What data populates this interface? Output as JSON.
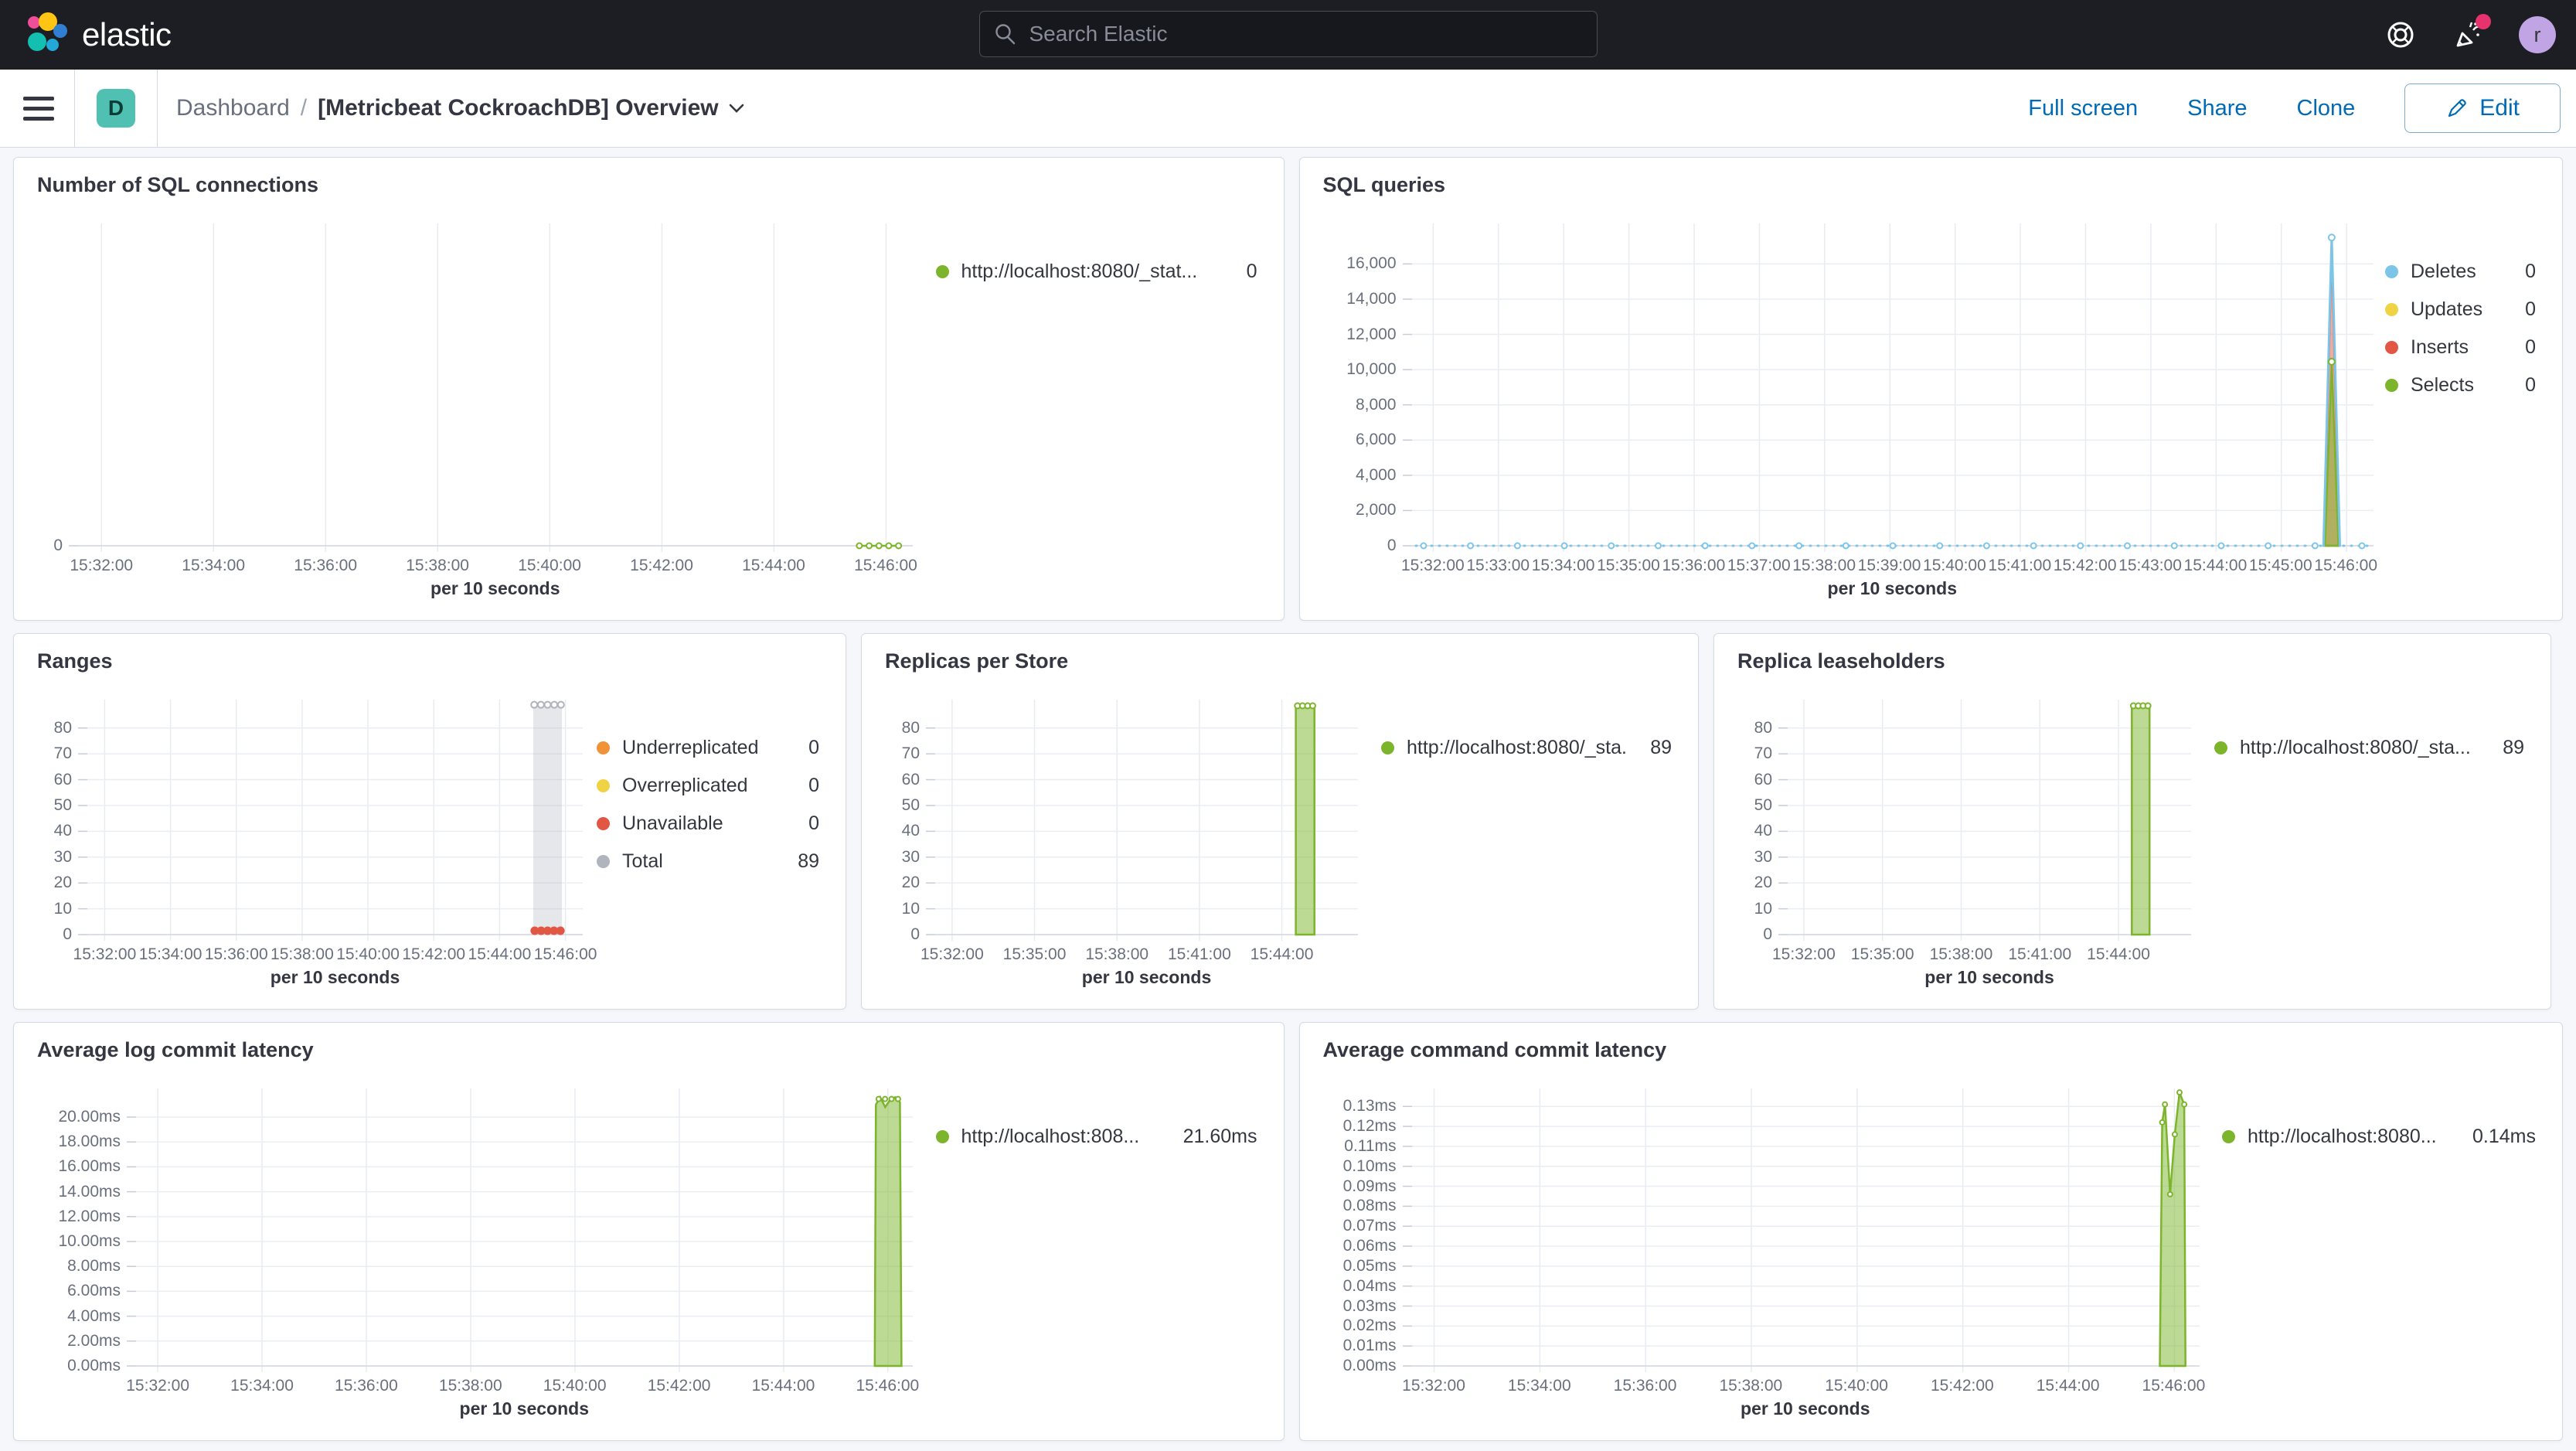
{
  "header": {
    "logo_text": "elastic",
    "search_placeholder": "Search Elastic",
    "avatar_initial": "r"
  },
  "toolbar": {
    "badge": "D",
    "breadcrumb_root": "Dashboard",
    "breadcrumb_sep": "/",
    "title": "[Metricbeat CockroachDB] Overview",
    "action_fullscreen": "Full screen",
    "action_share": "Share",
    "action_clone": "Clone",
    "edit_label": "Edit"
  },
  "colors": {
    "green": "#7CB52B",
    "blue": "#7DC5E8",
    "yellow": "#EFD344",
    "red": "#E25744",
    "orange": "#F09237",
    "gray": "#AFB4BD",
    "link": "#006BB4",
    "accent": "#E6336E"
  },
  "panels": [
    {
      "id": "p1",
      "title": "Number of SQL connections",
      "legend": [
        {
          "color": "green",
          "label": "http://localhost:8080/_stat...",
          "value": "0"
        }
      ],
      "chart": {
        "ylim": [
          0,
          10
        ],
        "yticks": [
          {
            "v": 0,
            "label": "0"
          }
        ],
        "xticks": {
          "first": 0.028,
          "last": 0.968,
          "labels": [
            "15:32:00",
            "15:34:00",
            "15:36:00",
            "15:38:00",
            "15:40:00",
            "15:42:00",
            "15:44:00",
            "15:46:00"
          ]
        },
        "xtitle": "per 10 seconds",
        "series": [
          {
            "type": "line",
            "color": "green",
            "w": 2.5,
            "points": [
              [
                0.936,
                0
              ],
              [
                0.983,
                0
              ]
            ]
          },
          {
            "type": "dotrow",
            "color": "green",
            "fill": "#ffffff",
            "r": 3.5,
            "y": 0,
            "x0": 0.936,
            "x1": 0.983,
            "n": 5
          }
        ]
      }
    },
    {
      "id": "p2",
      "title": "SQL queries",
      "legend": [
        {
          "color": "blue",
          "label": "Deletes",
          "value": "0"
        },
        {
          "color": "yellow",
          "label": "Updates",
          "value": "0"
        },
        {
          "color": "red",
          "label": "Inserts",
          "value": "0"
        },
        {
          "color": "green",
          "label": "Selects",
          "value": "0"
        }
      ],
      "chart": {
        "ylim": [
          0,
          18300
        ],
        "yticks": [
          {
            "v": 0,
            "label": "0"
          },
          {
            "v": 2000,
            "label": "2,000"
          },
          {
            "v": 4000,
            "label": "4,000"
          },
          {
            "v": 6000,
            "label": "6,000"
          },
          {
            "v": 8000,
            "label": "8,000"
          },
          {
            "v": 10000,
            "label": "10,000"
          },
          {
            "v": 12000,
            "label": "12,000"
          },
          {
            "v": 14000,
            "label": "14,000"
          },
          {
            "v": 16000,
            "label": "16,000"
          }
        ],
        "xticks": {
          "first": 0.022,
          "last": 0.972,
          "labels": [
            "15:32:00",
            "15:33:00",
            "15:34:00",
            "15:35:00",
            "15:36:00",
            "15:37:00",
            "15:38:00",
            "15:39:00",
            "15:40:00",
            "15:41:00",
            "15:42:00",
            "15:43:00",
            "15:44:00",
            "15:45:00",
            "15:46:00"
          ]
        },
        "xtitle": "per 10 seconds",
        "series": [
          {
            "type": "line",
            "color": "blue",
            "w": 3,
            "dash": "1 9",
            "points": [
              [
                0.004,
                0
              ],
              [
                0.996,
                0
              ]
            ]
          },
          {
            "type": "dotrow",
            "color": "blue",
            "fill": "#ffffff",
            "r": 3.5,
            "y": 0,
            "x0": 0.012,
            "x1": 0.988,
            "n": 21
          },
          {
            "type": "area",
            "color": "red",
            "fillo": 0.5,
            "points": [
              [
                0.9485,
                0
              ],
              [
                0.9565,
                16800
              ],
              [
                0.9645,
                0
              ]
            ]
          },
          {
            "type": "area",
            "color": "green",
            "fillo": 0.55,
            "points": [
              [
                0.9495,
                0
              ],
              [
                0.9565,
                10450
              ],
              [
                0.9635,
                0
              ]
            ]
          },
          {
            "type": "line",
            "color": "blue",
            "w": 3,
            "points": [
              [
                0.948,
                0
              ],
              [
                0.9565,
                17500
              ],
              [
                0.965,
                0
              ]
            ]
          },
          {
            "type": "markers",
            "color": "blue",
            "fill": "#ffffff",
            "r": 4,
            "points": [
              [
                0.9565,
                17500
              ]
            ]
          },
          {
            "type": "markers",
            "color": "green",
            "fill": "#ffffff",
            "r": 4,
            "points": [
              [
                0.9565,
                10450
              ]
            ]
          }
        ]
      }
    },
    {
      "id": "p3",
      "title": "Ranges",
      "legend": [
        {
          "color": "orange",
          "label": "Underreplicated",
          "value": "0"
        },
        {
          "color": "yellow",
          "label": "Overreplicated",
          "value": "0"
        },
        {
          "color": "red",
          "label": "Unavailable",
          "value": "0"
        },
        {
          "color": "gray",
          "label": "Total",
          "value": "89"
        }
      ],
      "chart": {
        "ylim": [
          0,
          91
        ],
        "yticks": [
          {
            "v": 0,
            "label": "0"
          },
          {
            "v": 10,
            "label": "10"
          },
          {
            "v": 20,
            "label": "20"
          },
          {
            "v": 30,
            "label": "30"
          },
          {
            "v": 40,
            "label": "40"
          },
          {
            "v": 50,
            "label": "50"
          },
          {
            "v": 60,
            "label": "60"
          },
          {
            "v": 70,
            "label": "70"
          },
          {
            "v": 80,
            "label": "80"
          }
        ],
        "xticks": {
          "first": 0.035,
          "last": 0.965,
          "labels": [
            "15:32:00",
            "15:34:00",
            "15:36:00",
            "15:38:00",
            "15:40:00",
            "15:42:00",
            "15:44:00",
            "15:46:00"
          ]
        },
        "xtitle": "per 10 seconds",
        "series": [
          {
            "type": "area",
            "color": "gray",
            "nostroke": true,
            "fillo": 0.32,
            "points": [
              [
                0.9,
                0
              ],
              [
                0.9,
                89
              ],
              [
                0.958,
                89
              ],
              [
                0.958,
                0
              ]
            ]
          },
          {
            "type": "dotrow",
            "color": "gray",
            "fill": "#ffffff",
            "r": 4,
            "y": 89,
            "x0": 0.902,
            "x1": 0.956,
            "n": 5
          },
          {
            "type": "dotrow",
            "color": "red",
            "fill": "red",
            "r": 4.5,
            "y": 1.5,
            "x0": 0.903,
            "x1": 0.955,
            "n": 5
          }
        ]
      }
    },
    {
      "id": "p4",
      "title": "Replicas per Store",
      "legend": [
        {
          "color": "green",
          "label": "http://localhost:8080/_sta...",
          "value": "89"
        }
      ],
      "chart": {
        "ylim": [
          0,
          91
        ],
        "yticks": [
          {
            "v": 0,
            "label": "0"
          },
          {
            "v": 10,
            "label": "10"
          },
          {
            "v": 20,
            "label": "20"
          },
          {
            "v": 30,
            "label": "30"
          },
          {
            "v": 40,
            "label": "40"
          },
          {
            "v": 50,
            "label": "50"
          },
          {
            "v": 60,
            "label": "60"
          },
          {
            "v": 70,
            "label": "70"
          },
          {
            "v": 80,
            "label": "80"
          }
        ],
        "xticks": {
          "first": 0.04,
          "last": 0.82,
          "labels": [
            "15:32:00",
            "15:35:00",
            "15:38:00",
            "15:41:00",
            "15:44:00"
          ]
        },
        "xtitle": "per 10 seconds",
        "series": [
          {
            "type": "area",
            "color": "green",
            "fillo": 0.5,
            "points": [
              [
                0.853,
                0
              ],
              [
                0.853,
                88
              ],
              [
                0.897,
                89
              ],
              [
                0.897,
                0
              ]
            ]
          },
          {
            "type": "dotrow",
            "color": "green",
            "fill": "#ffffff",
            "r": 3.5,
            "y": 88.6,
            "x0": 0.857,
            "x1": 0.893,
            "n": 4
          }
        ]
      }
    },
    {
      "id": "p5",
      "title": "Replica leaseholders",
      "legend": [
        {
          "color": "green",
          "label": "http://localhost:8080/_sta...",
          "value": "89"
        }
      ],
      "chart": {
        "ylim": [
          0,
          91
        ],
        "yticks": [
          {
            "v": 0,
            "label": "0"
          },
          {
            "v": 10,
            "label": "10"
          },
          {
            "v": 20,
            "label": "20"
          },
          {
            "v": 30,
            "label": "30"
          },
          {
            "v": 40,
            "label": "40"
          },
          {
            "v": 50,
            "label": "50"
          },
          {
            "v": 60,
            "label": "60"
          },
          {
            "v": 70,
            "label": "70"
          },
          {
            "v": 80,
            "label": "80"
          }
        ],
        "xticks": {
          "first": 0.04,
          "last": 0.82,
          "labels": [
            "15:32:00",
            "15:35:00",
            "15:38:00",
            "15:41:00",
            "15:44:00"
          ]
        },
        "xtitle": "per 10 seconds",
        "series": [
          {
            "type": "area",
            "color": "green",
            "fillo": 0.5,
            "points": [
              [
                0.853,
                0
              ],
              [
                0.853,
                88
              ],
              [
                0.897,
                89
              ],
              [
                0.897,
                0
              ]
            ]
          },
          {
            "type": "dotrow",
            "color": "green",
            "fill": "#ffffff",
            "r": 3.5,
            "y": 88.6,
            "x0": 0.857,
            "x1": 0.893,
            "n": 4
          }
        ]
      }
    },
    {
      "id": "p6",
      "title": "Average log commit latency",
      "legend": [
        {
          "color": "green",
          "label": "http://localhost:808...",
          "value": "21.60ms"
        }
      ],
      "chart": {
        "ylim": [
          0,
          22.3
        ],
        "yticks": [
          {
            "v": 0,
            "label": "0.00ms"
          },
          {
            "v": 2,
            "label": "2.00ms"
          },
          {
            "v": 4,
            "label": "4.00ms"
          },
          {
            "v": 6,
            "label": "6.00ms"
          },
          {
            "v": 8,
            "label": "8.00ms"
          },
          {
            "v": 10,
            "label": "10.00ms"
          },
          {
            "v": 12,
            "label": "12.00ms"
          },
          {
            "v": 14,
            "label": "14.00ms"
          },
          {
            "v": 16,
            "label": "16.00ms"
          },
          {
            "v": 18,
            "label": "18.00ms"
          },
          {
            "v": 20,
            "label": "20.00ms"
          }
        ],
        "xticks": {
          "first": 0.028,
          "last": 0.968,
          "labels": [
            "15:32:00",
            "15:34:00",
            "15:36:00",
            "15:38:00",
            "15:40:00",
            "15:42:00",
            "15:44:00",
            "15:46:00"
          ]
        },
        "xtitle": "per 10 seconds",
        "series": [
          {
            "type": "area",
            "color": "green",
            "fillo": 0.5,
            "points": [
              [
                0.951,
                0
              ],
              [
                0.9525,
                21.0
              ],
              [
                0.958,
                21.6
              ],
              [
                0.9645,
                20.8
              ],
              [
                0.971,
                21.4
              ],
              [
                0.9775,
                21.6
              ],
              [
                0.9835,
                21.2
              ],
              [
                0.9855,
                0
              ]
            ]
          },
          {
            "type": "dotrow",
            "color": "green",
            "fill": "#ffffff",
            "r": 3,
            "y": 21.45,
            "x0": 0.956,
            "x1": 0.981,
            "n": 4
          }
        ]
      }
    },
    {
      "id": "p7",
      "title": "Average command commit latency",
      "legend": [
        {
          "color": "green",
          "label": "http://localhost:8080...",
          "value": "0.14ms"
        }
      ],
      "chart": {
        "ylim": [
          0,
          0.139
        ],
        "yticks": [
          {
            "v": 0,
            "label": "0.00ms"
          },
          {
            "v": 0.01,
            "label": "0.01ms"
          },
          {
            "v": 0.02,
            "label": "0.02ms"
          },
          {
            "v": 0.03,
            "label": "0.03ms"
          },
          {
            "v": 0.04,
            "label": "0.04ms"
          },
          {
            "v": 0.05,
            "label": "0.05ms"
          },
          {
            "v": 0.06,
            "label": "0.06ms"
          },
          {
            "v": 0.07,
            "label": "0.07ms"
          },
          {
            "v": 0.08,
            "label": "0.08ms"
          },
          {
            "v": 0.09,
            "label": "0.09ms"
          },
          {
            "v": 0.1,
            "label": "0.10ms"
          },
          {
            "v": 0.11,
            "label": "0.11ms"
          },
          {
            "v": 0.12,
            "label": "0.12ms"
          },
          {
            "v": 0.13,
            "label": "0.13ms"
          }
        ],
        "xticks": {
          "first": 0.028,
          "last": 0.968,
          "labels": [
            "15:32:00",
            "15:34:00",
            "15:36:00",
            "15:38:00",
            "15:40:00",
            "15:42:00",
            "15:44:00",
            "15:46:00"
          ]
        },
        "xtitle": "per 10 seconds",
        "series": [
          {
            "type": "area",
            "color": "green",
            "fillo": 0.5,
            "points": [
              [
                0.9495,
                0
              ],
              [
                0.9525,
                0.122
              ],
              [
                0.956,
                0.131
              ],
              [
                0.9625,
                0.086
              ],
              [
                0.9685,
                0.116
              ],
              [
                0.9745,
                0.137
              ],
              [
                0.9805,
                0.131
              ],
              [
                0.982,
                0
              ]
            ]
          },
          {
            "type": "markers",
            "color": "green",
            "fill": "#ffffff",
            "r": 3,
            "points": [
              [
                0.9525,
                0.122
              ],
              [
                0.956,
                0.131
              ],
              [
                0.9625,
                0.086
              ],
              [
                0.9685,
                0.116
              ],
              [
                0.9745,
                0.137
              ],
              [
                0.9805,
                0.131
              ]
            ]
          }
        ]
      }
    }
  ]
}
